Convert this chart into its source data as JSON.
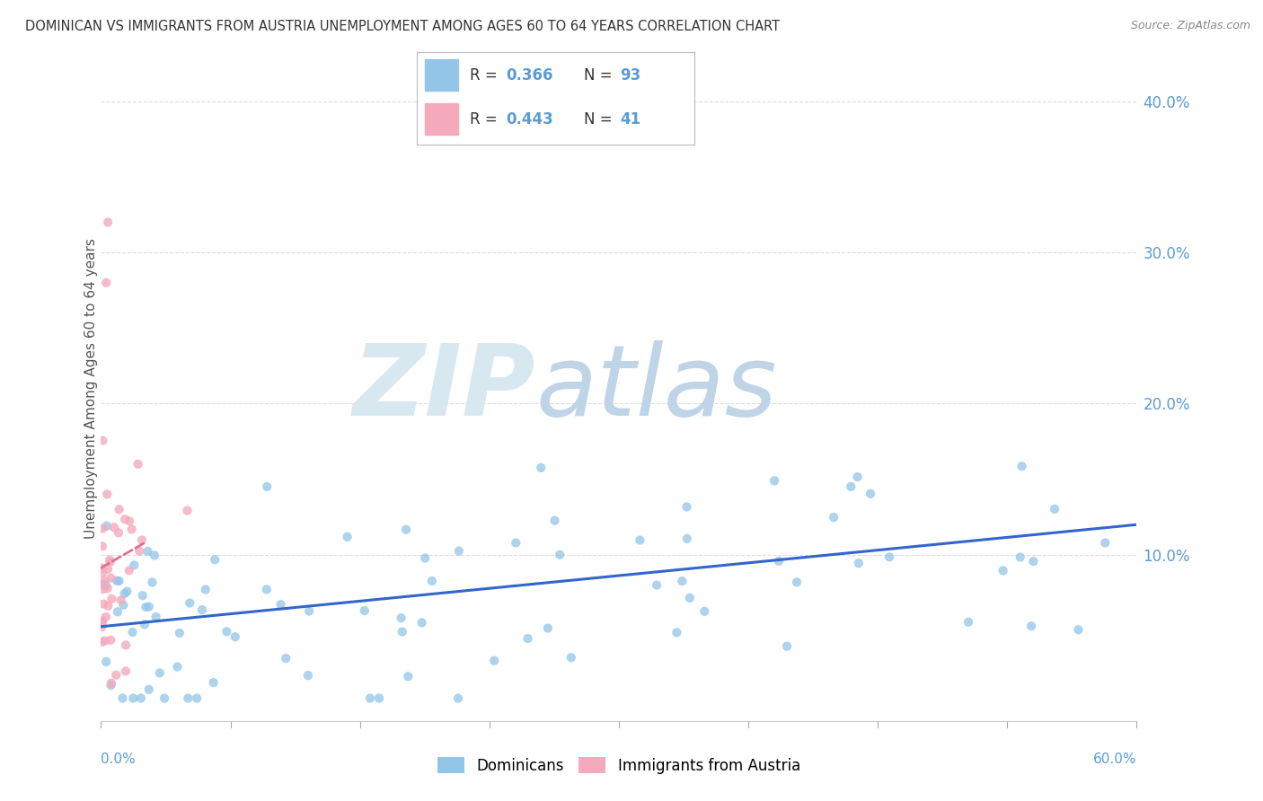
{
  "title": "DOMINICAN VS IMMIGRANTS FROM AUSTRIA UNEMPLOYMENT AMONG AGES 60 TO 64 YEARS CORRELATION CHART",
  "source": "Source: ZipAtlas.com",
  "ylabel": "Unemployment Among Ages 60 to 64 years",
  "y_ticks": [
    0.0,
    0.1,
    0.2,
    0.3,
    0.4
  ],
  "y_tick_labels": [
    "",
    "10.0%",
    "20.0%",
    "30.0%",
    "40.0%"
  ],
  "x_range": [
    0.0,
    0.6
  ],
  "y_range": [
    -0.01,
    0.43
  ],
  "blue_color": "#92C5E8",
  "pink_color": "#F4AABC",
  "blue_line_color": "#3366CC",
  "pink_line_color": "#E07090",
  "pink_dash_color": "#D0A0B0",
  "watermark_zip": "ZIP",
  "watermark_atlas": "atlas",
  "watermark_color": "#D8E8F0",
  "background_color": "#FFFFFF",
  "grid_color": "#DDDDDD",
  "title_color": "#333333",
  "source_color": "#888888",
  "tick_label_color": "#5B9BD5",
  "legend_r_color": "#333333",
  "legend_n_color": "#5B9BD5",
  "legend_val_color": "#5B9BD5"
}
